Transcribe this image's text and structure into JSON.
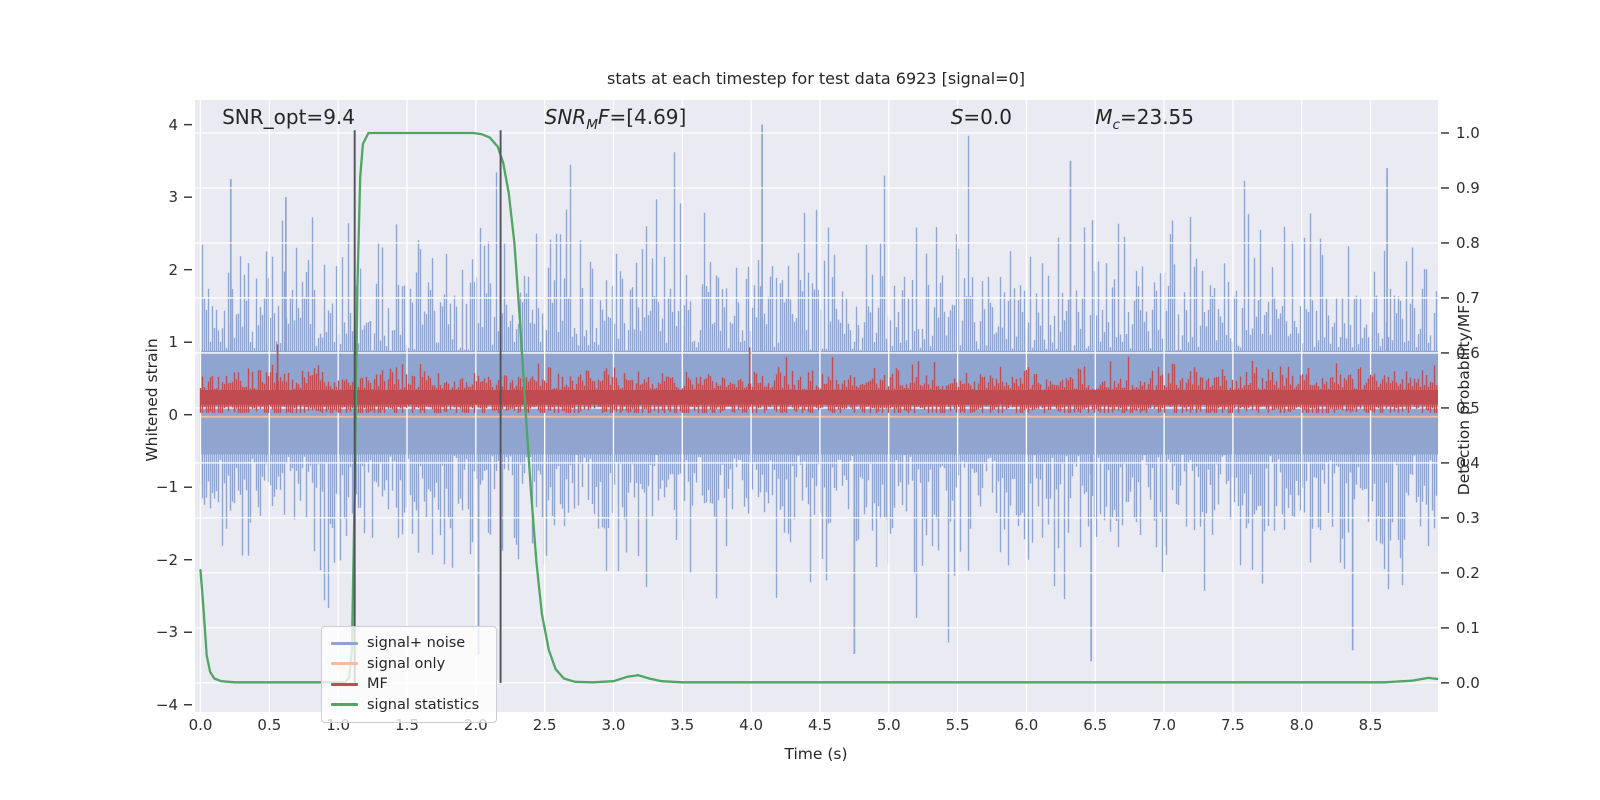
{
  "chart_data": {
    "type": "line",
    "title": "stats at each timestep for test data 6923 [signal=0]",
    "xlabel": "Time (s)",
    "ylabel_left": "Whitened strain",
    "ylabel_right": "Detection probability/MF",
    "xlim": [
      -0.04,
      8.99
    ],
    "ylim_left": [
      -4.1,
      4.34
    ],
    "ylim_right": [
      -0.053,
      1.06
    ],
    "background": "#eaeaf2",
    "grid_color": "#ffffff",
    "xticks": {
      "values": [
        0,
        0.5,
        1,
        1.5,
        2,
        2.5,
        3,
        3.5,
        4,
        4.5,
        5,
        5.5,
        6,
        6.5,
        7,
        7.5,
        8,
        8.5
      ],
      "labels": [
        "0.0",
        "0.5",
        "1.0",
        "1.5",
        "2.0",
        "2.5",
        "3.0",
        "3.5",
        "4.0",
        "4.5",
        "5.0",
        "5.5",
        "6.0",
        "6.5",
        "7.0",
        "7.5",
        "8.0",
        "8.5"
      ]
    },
    "yticks_left": {
      "values": [
        4,
        3,
        2,
        1,
        0,
        -1,
        -2,
        -3,
        -4
      ],
      "labels": [
        "4",
        "3",
        "2",
        "1",
        "0",
        "−1",
        "−2",
        "−3",
        "−4"
      ]
    },
    "yticks_right": {
      "values": [
        1.0,
        0.9,
        0.8,
        0.7,
        0.6,
        0.5,
        0.4,
        0.3,
        0.2,
        0.1,
        0.0
      ],
      "labels": [
        "1.0",
        "0.9",
        "0.8",
        "0.7",
        "0.6",
        "0.5",
        "0.4",
        "0.3",
        "0.2",
        "0.1",
        "0.0"
      ]
    },
    "annotations": [
      {
        "x": 0.157,
        "parts": [
          {
            "t": "SNR_opt=9.4",
            "italic": false
          }
        ]
      },
      {
        "x": 2.5,
        "parts": [
          {
            "t": "SNR",
            "italic": true
          },
          {
            "t": "M",
            "italic": true,
            "sub": true
          },
          {
            "t": "F",
            "italic": true
          },
          {
            "t": "=[4.69]",
            "italic": false
          }
        ]
      },
      {
        "x": 5.45,
        "parts": [
          {
            "t": "S",
            "italic": true
          },
          {
            "t": "=0.0",
            "italic": false
          }
        ]
      },
      {
        "x": 6.5,
        "parts": [
          {
            "t": "M",
            "italic": true
          },
          {
            "t": "c",
            "italic": true,
            "sub": true
          },
          {
            "t": "=23.55",
            "italic": false
          }
        ]
      }
    ],
    "vlines": {
      "x": [
        1.12,
        2.18
      ],
      "span_right": [
        0.0,
        1.005
      ],
      "color": "#515159"
    },
    "series": [
      {
        "key": "signal_plus_noise",
        "label": "signal+ noise",
        "color": "#90a4d0",
        "axis": "left",
        "kind": "noise",
        "core": [
          -0.55,
          0.88
        ],
        "up_spread": 0.8,
        "down_spread": 0.78,
        "cap": [
          -3.55,
          4.05
        ],
        "seed": 77001,
        "peaks": [
          [
            0.22,
            3.25
          ],
          [
            0.62,
            3.0
          ],
          [
            4.08,
            4.0
          ],
          [
            6.32,
            3.5
          ],
          [
            8.62,
            3.4
          ],
          [
            2.02,
            -3.3
          ],
          [
            4.75,
            -3.3
          ],
          [
            6.47,
            -3.4
          ],
          [
            8.37,
            -3.25
          ]
        ]
      },
      {
        "key": "signal_only",
        "label": "signal only",
        "color": "#f2bd9e",
        "axis": "left",
        "kind": "constant",
        "value": 0.0
      },
      {
        "key": "mf",
        "label": "MF",
        "color": "#c04b50",
        "axis": "left",
        "kind": "noise",
        "core": [
          0.14,
          0.34
        ],
        "up_spread": 0.16,
        "down_spread": 0.12,
        "cap": [
          0.025,
          0.8
        ],
        "seed": 424242,
        "peaks": [
          [
            0.56,
            0.97
          ],
          [
            3.99,
            0.93
          ]
        ]
      },
      {
        "key": "signal_statistics",
        "label": "signal statistics",
        "color": "#50a563",
        "axis": "right",
        "kind": "line",
        "points": [
          [
            0,
            0.205
          ],
          [
            0.02,
            0.14
          ],
          [
            0.045,
            0.05
          ],
          [
            0.07,
            0.02
          ],
          [
            0.1,
            0.008
          ],
          [
            0.15,
            0.003
          ],
          [
            0.25,
            0.001
          ],
          [
            0.6,
            0.001
          ],
          [
            1.05,
            0.001
          ],
          [
            1.08,
            0.01
          ],
          [
            1.1,
            0.06
          ],
          [
            1.12,
            0.35
          ],
          [
            1.14,
            0.72
          ],
          [
            1.16,
            0.92
          ],
          [
            1.18,
            0.98
          ],
          [
            1.22,
            1.0
          ],
          [
            1.6,
            1.0
          ],
          [
            1.98,
            1.0
          ],
          [
            2.04,
            0.998
          ],
          [
            2.1,
            0.992
          ],
          [
            2.16,
            0.975
          ],
          [
            2.2,
            0.945
          ],
          [
            2.24,
            0.89
          ],
          [
            2.28,
            0.8
          ],
          [
            2.32,
            0.66
          ],
          [
            2.36,
            0.5
          ],
          [
            2.4,
            0.35
          ],
          [
            2.44,
            0.22
          ],
          [
            2.48,
            0.125
          ],
          [
            2.53,
            0.06
          ],
          [
            2.58,
            0.025
          ],
          [
            2.64,
            0.008
          ],
          [
            2.72,
            0.002
          ],
          [
            2.85,
            0.001
          ],
          [
            3.0,
            0.003
          ],
          [
            3.1,
            0.011
          ],
          [
            3.18,
            0.014
          ],
          [
            3.26,
            0.008
          ],
          [
            3.35,
            0.003
          ],
          [
            3.5,
            0.001
          ],
          [
            5.0,
            0.001
          ],
          [
            7.0,
            0.001
          ],
          [
            8.6,
            0.001
          ],
          [
            8.8,
            0.004
          ],
          [
            8.92,
            0.009
          ],
          [
            8.99,
            0.007
          ]
        ]
      }
    ]
  }
}
